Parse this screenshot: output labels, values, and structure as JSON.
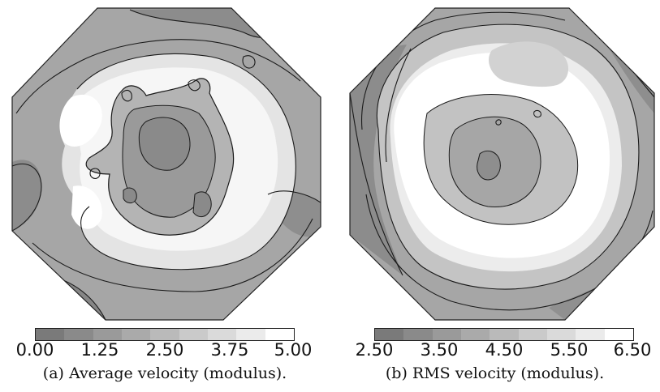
{
  "panels": [
    {
      "id": "a",
      "caption": "(a) Average velocity (modulus).",
      "colorbar": {
        "min": 0.0,
        "max": 5.0,
        "ticks": [
          "0.00",
          "1.25",
          "2.50",
          "3.75",
          "5.00"
        ]
      }
    },
    {
      "id": "b",
      "caption": "(b) RMS velocity (modulus).",
      "colorbar": {
        "min": 2.5,
        "max": 6.5,
        "ticks": [
          "2.50",
          "3.50",
          "4.50",
          "5.50",
          "6.50"
        ]
      }
    }
  ],
  "colors": {
    "scale": [
      "#7a7a7a",
      "#8a8a8a",
      "#9a9a9a",
      "#aaaaaa",
      "#bababa",
      "#cacaca",
      "#dadada",
      "#ebebeb",
      "#ffffff"
    ],
    "contour": "#1a1a1a"
  }
}
